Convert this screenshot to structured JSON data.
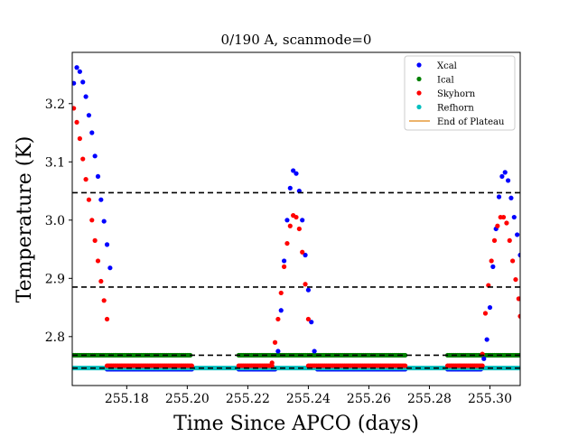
{
  "chart_data": {
    "type": "scatter",
    "title": "0/190 A, scanmode=0",
    "xlabel": "Time Since APCO (days)",
    "ylabel": "Temperature (K)",
    "xlim": [
      255.162,
      255.31
    ],
    "ylim": [
      2.716,
      3.288
    ],
    "xticks": [
      255.18,
      255.2,
      255.22,
      255.24,
      255.26,
      255.28,
      255.3
    ],
    "xtick_labels": [
      "255.18",
      "255.20",
      "255.22",
      "255.24",
      "255.26",
      "255.28",
      "255.30"
    ],
    "yticks": [
      2.8,
      2.9,
      3.0,
      3.1,
      3.2
    ],
    "ytick_labels": [
      "2.8",
      "2.9",
      "3.0",
      "3.1",
      "3.2"
    ],
    "grid": false,
    "legend_position": "top-right",
    "hlines": [
      3.047,
      2.885,
      2.768,
      2.746
    ],
    "series": [
      {
        "name": "Xcal",
        "color": "#0000ff",
        "kind": "points",
        "x": [
          255.1625,
          255.1635,
          255.1645,
          255.1655,
          255.1665,
          255.1675,
          255.1685,
          255.1695,
          255.1705,
          255.1715,
          255.1725,
          255.1735,
          255.1745,
          255.23,
          255.231,
          255.232,
          255.233,
          255.234,
          255.235,
          255.236,
          255.237,
          255.238,
          255.239,
          255.24,
          255.241,
          255.242,
          255.298,
          255.299,
          255.3,
          255.301,
          255.302,
          255.303,
          255.304,
          255.305,
          255.306,
          255.307,
          255.308,
          255.309,
          255.31
        ],
        "y": [
          3.235,
          3.262,
          3.255,
          3.237,
          3.212,
          3.18,
          3.15,
          3.11,
          3.075,
          3.035,
          2.998,
          2.958,
          2.918,
          2.775,
          2.845,
          2.93,
          3.0,
          3.055,
          3.085,
          3.08,
          3.05,
          3.0,
          2.94,
          2.88,
          2.825,
          2.775,
          2.762,
          2.795,
          2.85,
          2.92,
          2.985,
          3.04,
          3.075,
          3.082,
          3.068,
          3.038,
          3.005,
          2.975,
          2.94
        ],
        "plateaus": [
          {
            "x0": 255.1735,
            "x1": 255.2015,
            "y": 2.744,
            "n": 55
          },
          {
            "x0": 255.217,
            "x1": 255.229,
            "y": 2.744,
            "n": 25
          },
          {
            "x0": 255.243,
            "x1": 255.272,
            "y": 2.744,
            "n": 55
          },
          {
            "x0": 255.286,
            "x1": 255.297,
            "y": 2.744,
            "n": 22
          }
        ]
      },
      {
        "name": "Ical",
        "color": "#008000",
        "kind": "points",
        "x": [],
        "y": [],
        "plateaus": [
          {
            "x0": 255.1625,
            "x1": 255.201,
            "y": 2.768,
            "n": 75
          },
          {
            "x0": 255.217,
            "x1": 255.272,
            "y": 2.768,
            "n": 105
          },
          {
            "x0": 255.286,
            "x1": 255.31,
            "y": 2.768,
            "n": 46
          }
        ]
      },
      {
        "name": "Skyhorn",
        "color": "#ff0000",
        "kind": "points",
        "x": [
          255.1625,
          255.1635,
          255.1645,
          255.1655,
          255.1665,
          255.1675,
          255.1685,
          255.1695,
          255.1705,
          255.1715,
          255.1725,
          255.1735,
          255.228,
          255.229,
          255.23,
          255.231,
          255.232,
          255.233,
          255.234,
          255.235,
          255.236,
          255.237,
          255.238,
          255.239,
          255.24,
          255.2975,
          255.2985,
          255.2995,
          255.3005,
          255.3015,
          255.3025,
          255.3035,
          255.3045,
          255.3055,
          255.3065,
          255.3075,
          255.3085,
          255.3095,
          255.31
        ],
        "y": [
          3.192,
          3.168,
          3.14,
          3.105,
          3.07,
          3.035,
          3.0,
          2.965,
          2.93,
          2.895,
          2.862,
          2.83,
          2.755,
          2.79,
          2.83,
          2.875,
          2.92,
          2.96,
          2.99,
          3.008,
          3.005,
          2.985,
          2.945,
          2.89,
          2.83,
          2.77,
          2.84,
          2.888,
          2.93,
          2.965,
          2.99,
          3.005,
          3.005,
          2.995,
          2.965,
          2.93,
          2.898,
          2.865,
          2.835
        ],
        "plateaus": [
          {
            "x0": 255.1735,
            "x1": 255.2015,
            "y": 2.75,
            "n": 55
          },
          {
            "x0": 255.217,
            "x1": 255.228,
            "y": 2.75,
            "n": 22
          },
          {
            "x0": 255.24,
            "x1": 255.272,
            "y": 2.75,
            "n": 60
          },
          {
            "x0": 255.286,
            "x1": 255.2975,
            "y": 2.75,
            "n": 23
          }
        ]
      },
      {
        "name": "Refhorn",
        "color": "#00bfbf",
        "kind": "band",
        "x0": 255.162,
        "x1": 255.31,
        "y": 2.746
      },
      {
        "name": "End of Plateau",
        "color": "#e69a3a",
        "kind": "line"
      }
    ]
  }
}
